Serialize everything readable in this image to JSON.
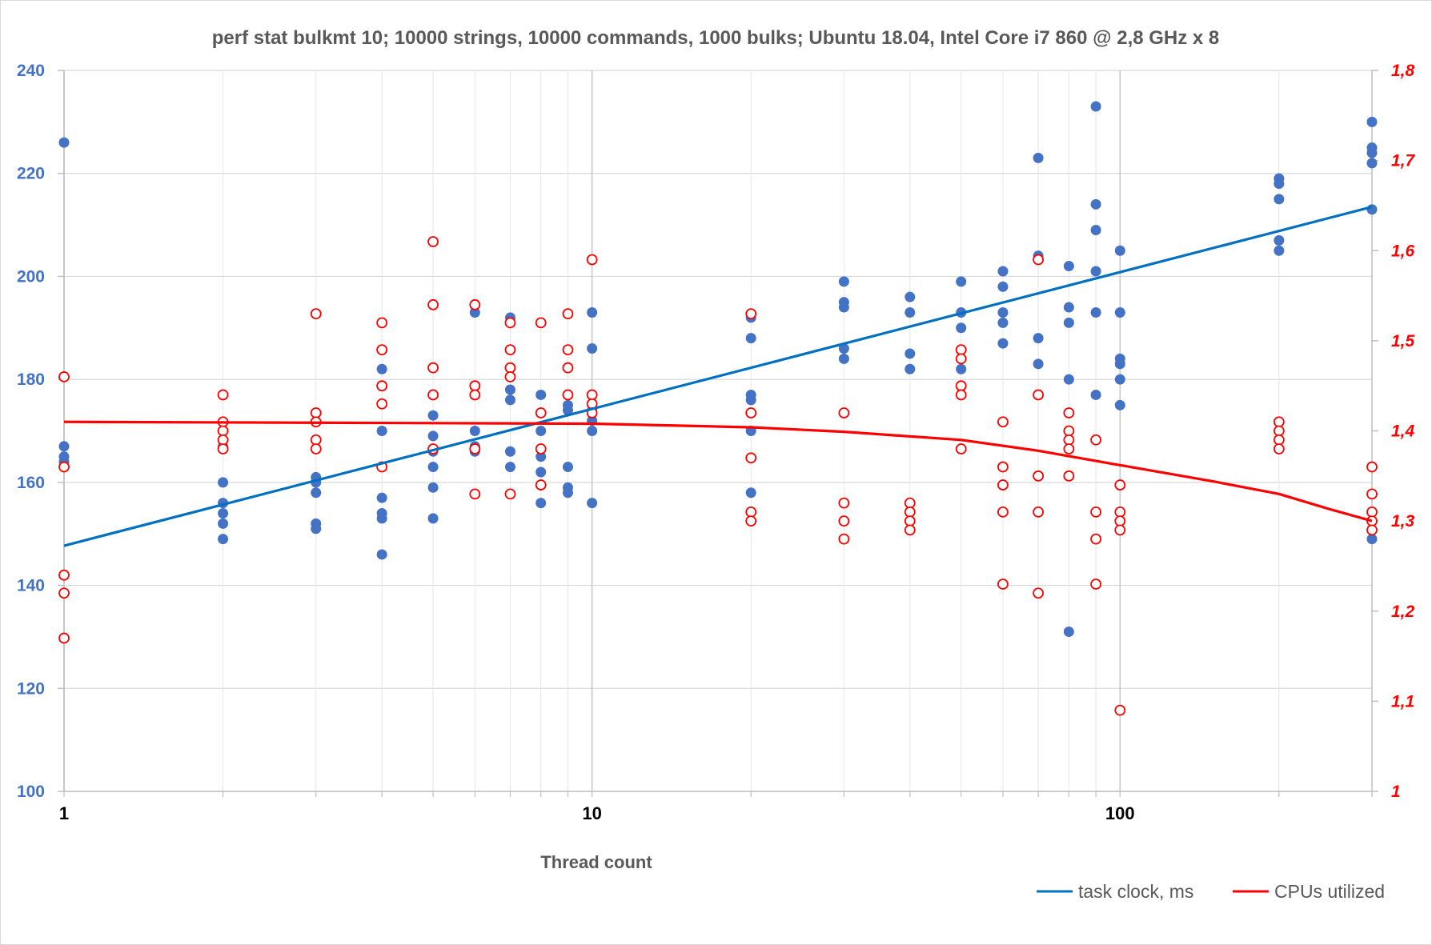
{
  "chart_data": {
    "type": "scatter",
    "title": "perf stat bulkmt 10; 10000 strings, 10000 commands, 1000 bulks; Ubuntu 18.04, Intel Core i7 860 @ 2,8 GHz x 8",
    "xlabel": "Thread count",
    "x_scale": "log",
    "xlim": [
      1,
      300
    ],
    "x_ticks": [
      1,
      10,
      100
    ],
    "x_tick_labels": [
      "1",
      "10",
      "100"
    ],
    "y_left": {
      "lim": [
        100,
        240
      ],
      "ticks": [
        100,
        120,
        140,
        160,
        180,
        200,
        220,
        240
      ],
      "tick_labels": [
        "100",
        "120",
        "140",
        "160",
        "180",
        "200",
        "220",
        "240"
      ]
    },
    "y_right": {
      "lim": [
        1.0,
        1.8
      ],
      "ticks": [
        1.0,
        1.1,
        1.2,
        1.3,
        1.4,
        1.5,
        1.6,
        1.7,
        1.8
      ],
      "tick_labels": [
        "1",
        "1,1",
        "1,2",
        "1,3",
        "1,4",
        "1,5",
        "1,6",
        "1,7",
        "1,8"
      ]
    },
    "grid": {
      "x_minor": true,
      "y_major": true
    },
    "legend_position": "bottom-right",
    "colors": {
      "task_clock": "#4472c4",
      "task_trend": "#0070c0",
      "cpus": "#ff0000",
      "grid": "#d9d9d9"
    },
    "series": [
      {
        "name": "task clock, ms",
        "axis": "left",
        "marker": "filled-circle",
        "points": [
          [
            1,
            226
          ],
          [
            1,
            167
          ],
          [
            1,
            165
          ],
          [
            1,
            164
          ],
          [
            2,
            167
          ],
          [
            2,
            160
          ],
          [
            2,
            156
          ],
          [
            2,
            154
          ],
          [
            2,
            152
          ],
          [
            2,
            149
          ],
          [
            3,
            161
          ],
          [
            3,
            160
          ],
          [
            3,
            158
          ],
          [
            3,
            152
          ],
          [
            3,
            151
          ],
          [
            4,
            182
          ],
          [
            4,
            170
          ],
          [
            4,
            157
          ],
          [
            4,
            154
          ],
          [
            4,
            153
          ],
          [
            4,
            146
          ],
          [
            5,
            173
          ],
          [
            5,
            169
          ],
          [
            5,
            166
          ],
          [
            5,
            163
          ],
          [
            5,
            159
          ],
          [
            5,
            153
          ],
          [
            6,
            193
          ],
          [
            6,
            170
          ],
          [
            6,
            167
          ],
          [
            6,
            166
          ],
          [
            7,
            192
          ],
          [
            7,
            178
          ],
          [
            7,
            176
          ],
          [
            7,
            166
          ],
          [
            7,
            163
          ],
          [
            8,
            177
          ],
          [
            8,
            170
          ],
          [
            8,
            165
          ],
          [
            8,
            162
          ],
          [
            8,
            156
          ],
          [
            9,
            175
          ],
          [
            9,
            174
          ],
          [
            9,
            163
          ],
          [
            9,
            159
          ],
          [
            9,
            158
          ],
          [
            10,
            193
          ],
          [
            10,
            186
          ],
          [
            10,
            174
          ],
          [
            10,
            172
          ],
          [
            10,
            170
          ],
          [
            10,
            156
          ],
          [
            20,
            192
          ],
          [
            20,
            188
          ],
          [
            20,
            177
          ],
          [
            20,
            176
          ],
          [
            20,
            170
          ],
          [
            20,
            158
          ],
          [
            30,
            199
          ],
          [
            30,
            195
          ],
          [
            30,
            194
          ],
          [
            30,
            186
          ],
          [
            30,
            184
          ],
          [
            40,
            196
          ],
          [
            40,
            193
          ],
          [
            40,
            185
          ],
          [
            40,
            182
          ],
          [
            50,
            199
          ],
          [
            50,
            193
          ],
          [
            50,
            190
          ],
          [
            50,
            182
          ],
          [
            60,
            201
          ],
          [
            60,
            198
          ],
          [
            60,
            193
          ],
          [
            60,
            191
          ],
          [
            60,
            187
          ],
          [
            70,
            223
          ],
          [
            70,
            204
          ],
          [
            70,
            188
          ],
          [
            70,
            183
          ],
          [
            80,
            202
          ],
          [
            80,
            194
          ],
          [
            80,
            191
          ],
          [
            80,
            180
          ],
          [
            80,
            131
          ],
          [
            90,
            233
          ],
          [
            90,
            214
          ],
          [
            90,
            209
          ],
          [
            90,
            201
          ],
          [
            90,
            193
          ],
          [
            90,
            177
          ],
          [
            100,
            205
          ],
          [
            100,
            193
          ],
          [
            100,
            184
          ],
          [
            100,
            183
          ],
          [
            100,
            180
          ],
          [
            100,
            175
          ],
          [
            200,
            219
          ],
          [
            200,
            218
          ],
          [
            200,
            215
          ],
          [
            200,
            207
          ],
          [
            200,
            205
          ],
          [
            300,
            230
          ],
          [
            300,
            225
          ],
          [
            300,
            224
          ],
          [
            300,
            222
          ],
          [
            300,
            213
          ],
          [
            300,
            149
          ]
        ],
        "trend": {
          "type": "log",
          "from": [
            1,
            147.7
          ],
          "to": [
            300,
            213.5
          ]
        }
      },
      {
        "name": "CPUs utilized",
        "axis": "right",
        "marker": "hollow-circle",
        "points": [
          [
            1,
            1.46
          ],
          [
            1,
            1.36
          ],
          [
            1,
            1.24
          ],
          [
            1,
            1.22
          ],
          [
            1,
            1.17
          ],
          [
            2,
            1.44
          ],
          [
            2,
            1.41
          ],
          [
            2,
            1.4
          ],
          [
            2,
            1.39
          ],
          [
            2,
            1.38
          ],
          [
            3,
            1.53
          ],
          [
            3,
            1.42
          ],
          [
            3,
            1.41
          ],
          [
            3,
            1.39
          ],
          [
            3,
            1.38
          ],
          [
            4,
            1.52
          ],
          [
            4,
            1.49
          ],
          [
            4,
            1.45
          ],
          [
            4,
            1.43
          ],
          [
            4,
            1.36
          ],
          [
            5,
            1.61
          ],
          [
            5,
            1.54
          ],
          [
            5,
            1.47
          ],
          [
            5,
            1.44
          ],
          [
            5,
            1.38
          ],
          [
            6,
            1.54
          ],
          [
            6,
            1.45
          ],
          [
            6,
            1.44
          ],
          [
            6,
            1.38
          ],
          [
            6,
            1.33
          ],
          [
            7,
            1.52
          ],
          [
            7,
            1.49
          ],
          [
            7,
            1.47
          ],
          [
            7,
            1.46
          ],
          [
            7,
            1.33
          ],
          [
            8,
            1.52
          ],
          [
            8,
            1.42
          ],
          [
            8,
            1.38
          ],
          [
            8,
            1.34
          ],
          [
            9,
            1.53
          ],
          [
            9,
            1.49
          ],
          [
            9,
            1.47
          ],
          [
            9,
            1.44
          ],
          [
            10,
            1.59
          ],
          [
            10,
            1.44
          ],
          [
            10,
            1.43
          ],
          [
            10,
            1.42
          ],
          [
            20,
            1.53
          ],
          [
            20,
            1.42
          ],
          [
            20,
            1.37
          ],
          [
            20,
            1.31
          ],
          [
            20,
            1.3
          ],
          [
            30,
            1.42
          ],
          [
            30,
            1.32
          ],
          [
            30,
            1.3
          ],
          [
            30,
            1.28
          ],
          [
            40,
            1.32
          ],
          [
            40,
            1.31
          ],
          [
            40,
            1.3
          ],
          [
            40,
            1.29
          ],
          [
            50,
            1.49
          ],
          [
            50,
            1.48
          ],
          [
            50,
            1.45
          ],
          [
            50,
            1.44
          ],
          [
            50,
            1.38
          ],
          [
            60,
            1.41
          ],
          [
            60,
            1.36
          ],
          [
            60,
            1.34
          ],
          [
            60,
            1.31
          ],
          [
            60,
            1.23
          ],
          [
            70,
            1.59
          ],
          [
            70,
            1.44
          ],
          [
            70,
            1.35
          ],
          [
            70,
            1.31
          ],
          [
            70,
            1.22
          ],
          [
            80,
            1.42
          ],
          [
            80,
            1.4
          ],
          [
            80,
            1.39
          ],
          [
            80,
            1.38
          ],
          [
            80,
            1.35
          ],
          [
            90,
            1.39
          ],
          [
            90,
            1.31
          ],
          [
            90,
            1.28
          ],
          [
            90,
            1.23
          ],
          [
            100,
            1.34
          ],
          [
            100,
            1.31
          ],
          [
            100,
            1.3
          ],
          [
            100,
            1.29
          ],
          [
            100,
            1.09
          ],
          [
            200,
            1.41
          ],
          [
            200,
            1.4
          ],
          [
            200,
            1.39
          ],
          [
            200,
            1.38
          ],
          [
            300,
            1.36
          ],
          [
            300,
            1.33
          ],
          [
            300,
            1.31
          ],
          [
            300,
            1.3
          ],
          [
            300,
            1.29
          ]
        ],
        "trend": {
          "type": "polynomial",
          "points": [
            [
              1,
              1.41
            ],
            [
              10,
              1.408
            ],
            [
              20,
              1.404
            ],
            [
              30,
              1.399
            ],
            [
              50,
              1.39
            ],
            [
              70,
              1.378
            ],
            [
              100,
              1.362
            ],
            [
              150,
              1.344
            ],
            [
              200,
              1.33
            ],
            [
              250,
              1.313
            ],
            [
              300,
              1.3
            ]
          ]
        }
      }
    ]
  }
}
